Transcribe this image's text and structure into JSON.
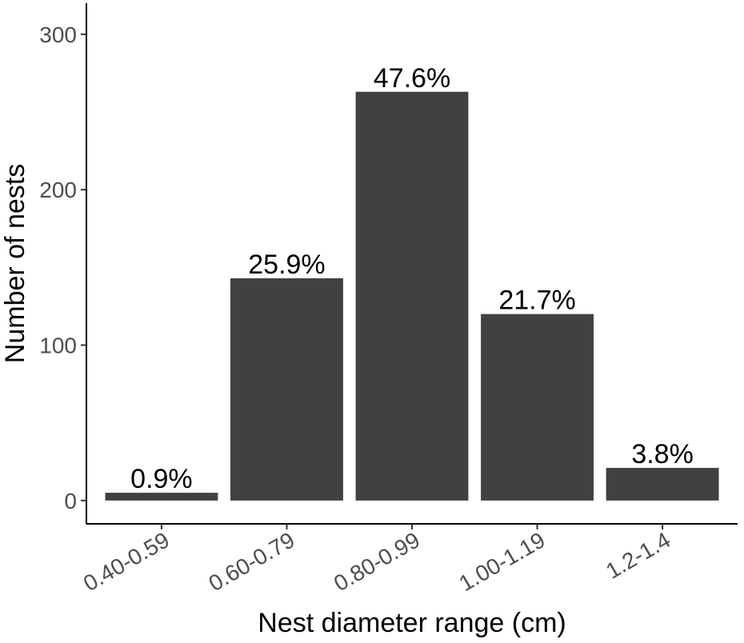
{
  "chart_data": {
    "type": "bar",
    "title": "",
    "xlabel": "Nest diameter range (cm)",
    "ylabel": "Number of nests",
    "categories": [
      "0.40-0.59",
      "0.60-0.79",
      "0.80-0.99",
      "1.00-1.19",
      "1.2-1.4"
    ],
    "values": [
      5,
      143,
      263,
      120,
      21
    ],
    "data_labels": [
      "0.9%",
      "25.9%",
      "47.6%",
      "21.7%",
      "3.8%"
    ],
    "ylim": [
      -15,
      320
    ],
    "yticks": [
      0,
      100,
      200,
      300
    ],
    "grid": false,
    "legend": "none",
    "bar_color": "#414141"
  }
}
